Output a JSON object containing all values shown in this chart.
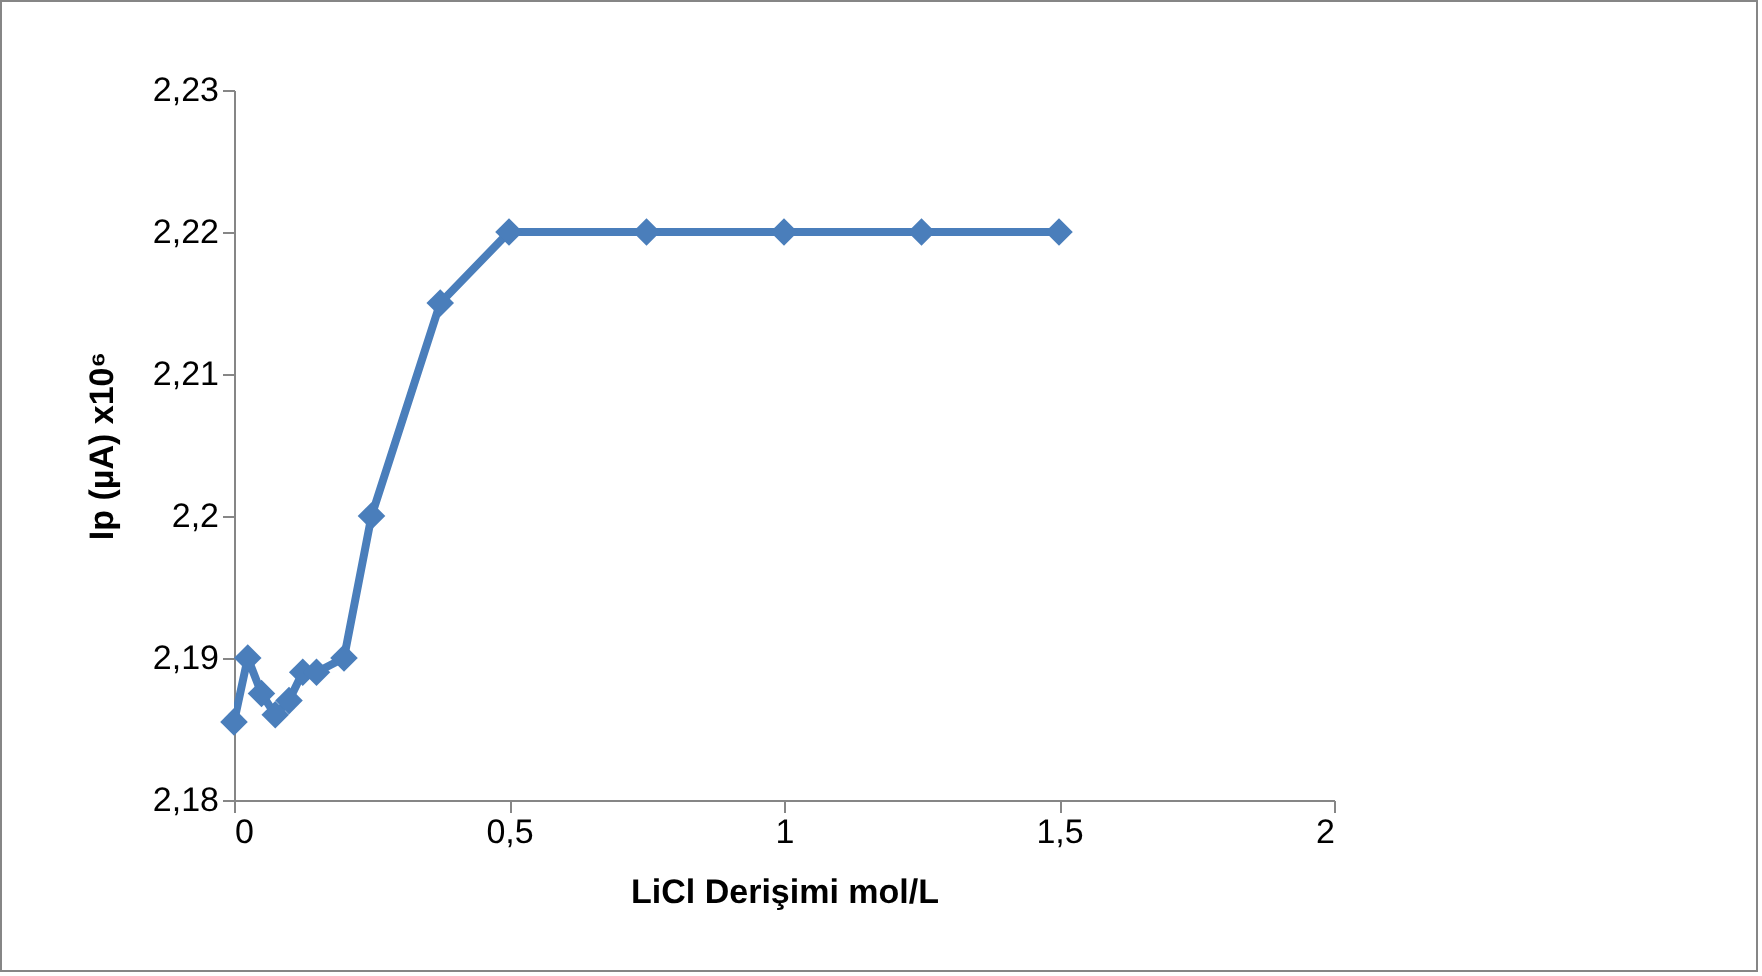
{
  "chart_data": {
    "type": "line",
    "xlabel": "LiCl Derişimi mol/L",
    "ylabel": "Ip (µA) x10⁶",
    "x": [
      0,
      0.025,
      0.05,
      0.075,
      0.1,
      0.125,
      0.15,
      0.2,
      0.25,
      0.375,
      0.5,
      0.75,
      1,
      1.25,
      1.5
    ],
    "series": [
      {
        "color": "#4a7ebb",
        "values": [
          2.1855,
          2.19,
          2.1875,
          2.186,
          2.187,
          2.189,
          2.189,
          2.19,
          2.2,
          2.215,
          2.22,
          2.22,
          2.22,
          2.22,
          2.22
        ]
      }
    ],
    "xlim": [
      0,
      2
    ],
    "xticks": [
      0,
      {
        "value": 0.5,
        "label": "0,5"
      },
      1,
      {
        "value": 1.5,
        "label": "1,5"
      },
      2
    ],
    "ylim": [
      2.18,
      2.23
    ],
    "yticks": [
      {
        "value": 2.18,
        "label": "2,18"
      },
      {
        "value": 2.19,
        "label": "2,19"
      },
      {
        "value": 2.2,
        "label": "2,2"
      },
      {
        "value": 2.21,
        "label": "2,21"
      },
      {
        "value": 2.22,
        "label": "2,22"
      },
      {
        "value": 2.23,
        "label": "2,23"
      }
    ],
    "marker": "diamond",
    "grid": false
  }
}
